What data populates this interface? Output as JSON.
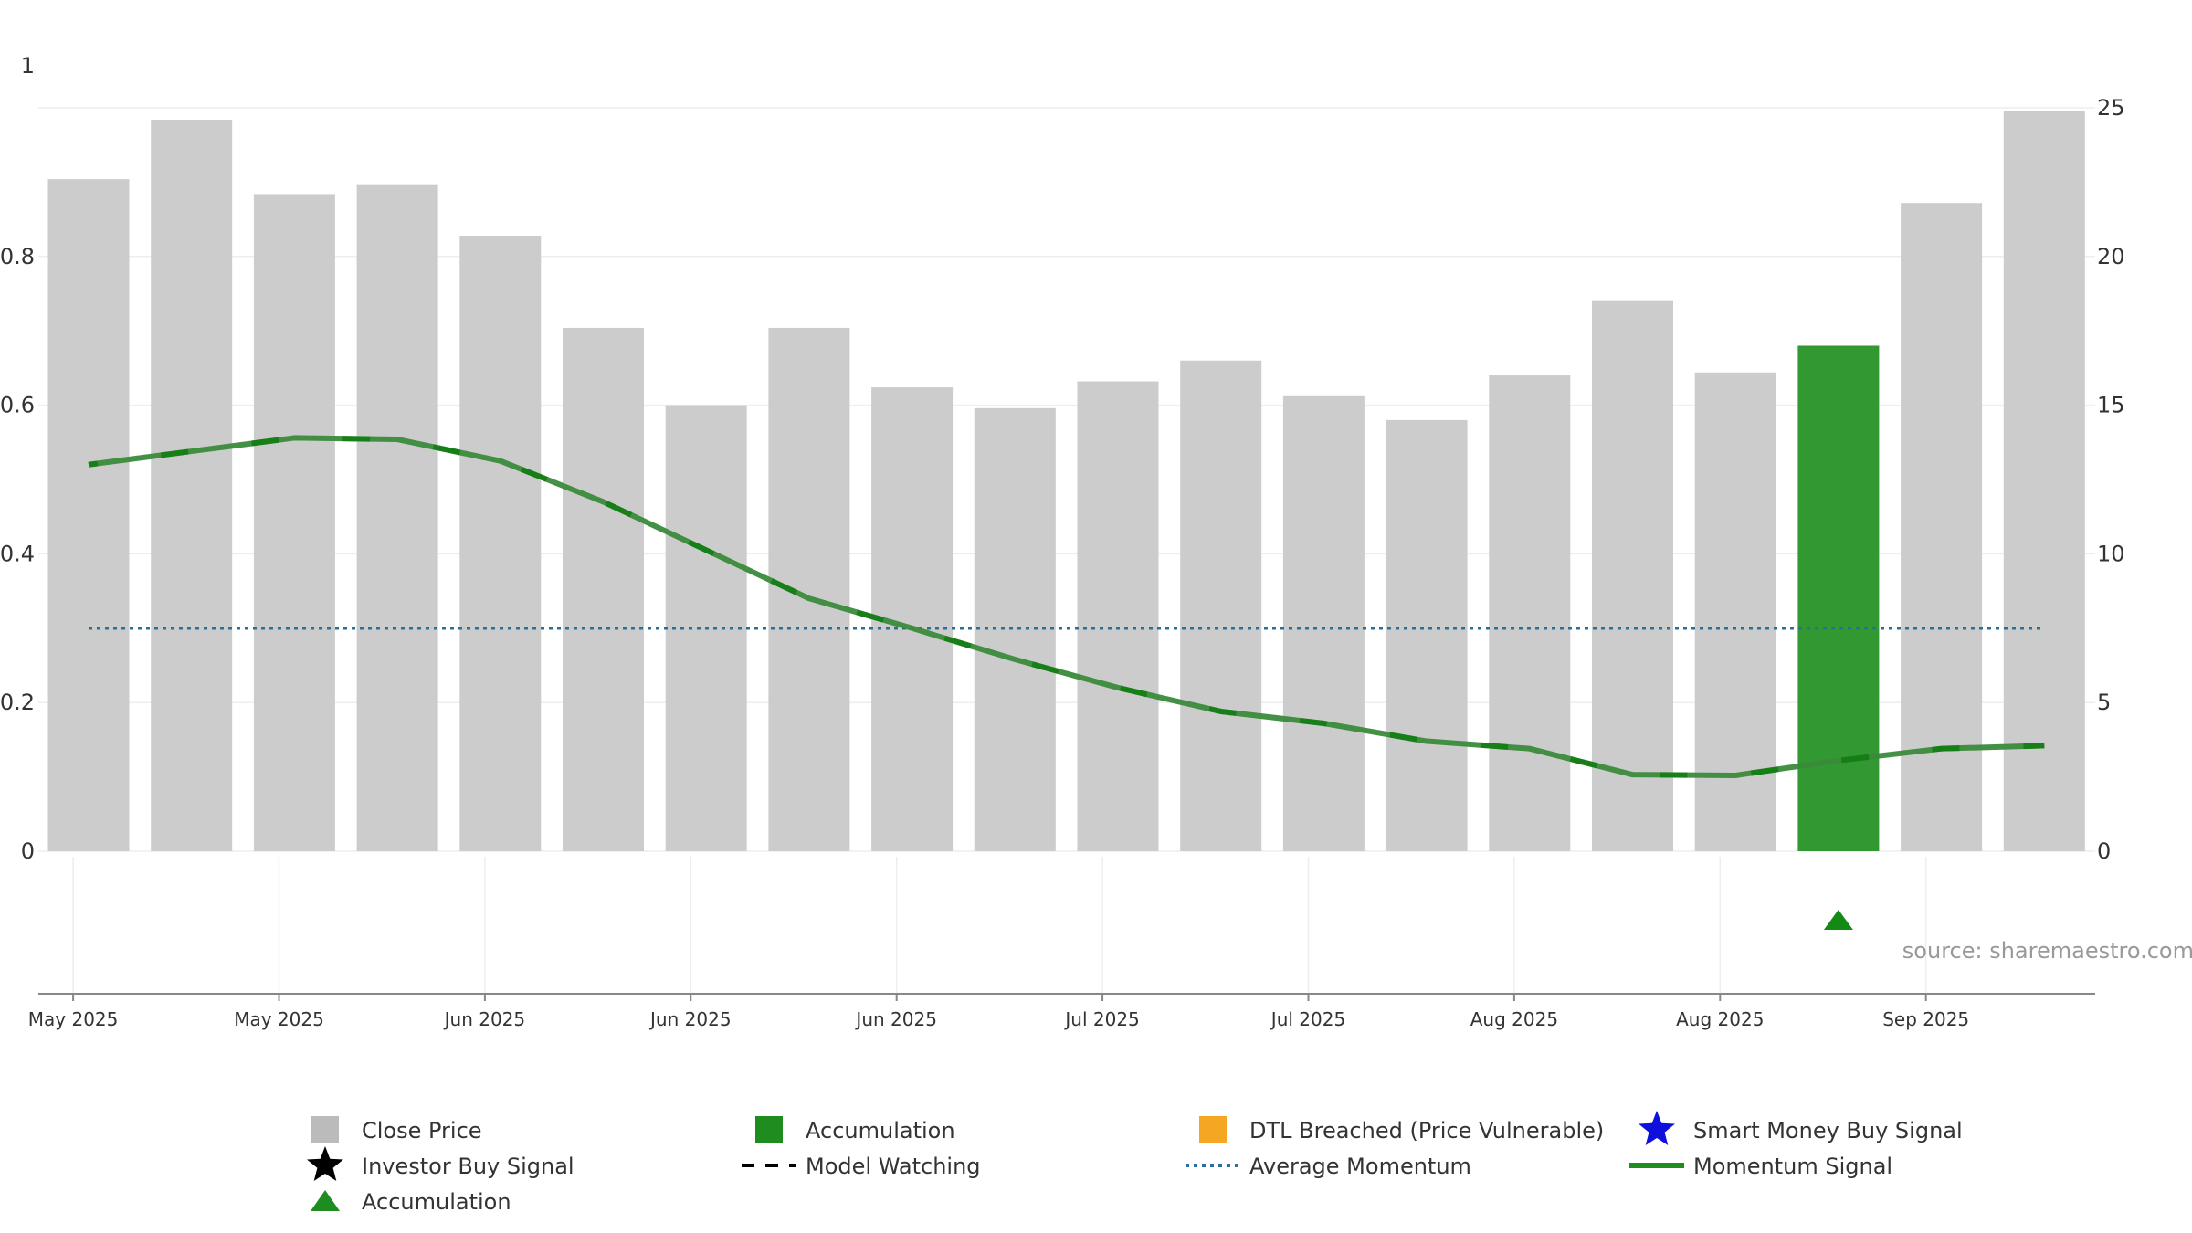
{
  "chart_data": {
    "type": "bar",
    "left_axis": {
      "ylim": [
        0,
        1
      ],
      "ticks": [
        0,
        0.2,
        0.4,
        0.6,
        0.8,
        1
      ],
      "tick_labels": [
        "0",
        "0.2",
        "0.4",
        "0.6",
        "0.8",
        "1"
      ]
    },
    "right_axis": {
      "ylim": [
        0,
        25
      ],
      "ticks": [
        0,
        5,
        10,
        15,
        20,
        25
      ],
      "tick_labels": [
        "0",
        "5",
        "10",
        "15",
        "20",
        "25"
      ]
    },
    "close_price": [
      22.6,
      24.6,
      22.1,
      22.4,
      20.7,
      17.6,
      15.0,
      17.6,
      15.6,
      14.9,
      15.8,
      16.5,
      15.3,
      14.5,
      16.0,
      18.5,
      16.1,
      17.0,
      21.8,
      24.9
    ],
    "accumulation_bars": [
      false,
      false,
      false,
      false,
      false,
      false,
      false,
      false,
      false,
      false,
      false,
      false,
      false,
      false,
      false,
      false,
      false,
      true,
      false,
      false
    ],
    "momentum_signal": [
      0.52,
      0.538,
      0.556,
      0.554,
      0.525,
      0.47,
      0.405,
      0.34,
      0.3,
      0.258,
      0.22,
      0.188,
      0.172,
      0.148,
      0.138,
      0.103,
      0.102,
      0.122,
      0.138,
      0.142
    ],
    "average_momentum": 0.3,
    "accumulation_markers": [
      17
    ],
    "x_tick_labels": [
      "May 2025",
      "May 2025",
      "Jun 2025",
      "Jun 2025",
      "Jun 2025",
      "Jul 2025",
      "Jul 2025",
      "Aug 2025",
      "Aug 2025",
      "Sep 2025"
    ],
    "x_tick_positions_in_bars": [
      -0.15,
      1.85,
      3.85,
      5.85,
      7.85,
      9.85,
      11.85,
      13.85,
      15.85,
      17.85
    ],
    "source_label": "source: sharemaestro.com",
    "legend": [
      {
        "key": "close",
        "label": "Close Price",
        "symbol": "square",
        "color": "#bbbbbb"
      },
      {
        "key": "accum_bar",
        "label": "Accumulation",
        "symbol": "square",
        "color": "#1e8c1e"
      },
      {
        "key": "dtl",
        "label": "DTL Breached (Price Vulnerable)",
        "symbol": "square",
        "color": "#f5a623"
      },
      {
        "key": "smart",
        "label": "Smart Money Buy Signal",
        "symbol": "star",
        "color": "#1010dd"
      },
      {
        "key": "investor",
        "label": "Investor Buy Signal",
        "symbol": "star",
        "color": "#000000"
      },
      {
        "key": "watch",
        "label": "Model Watching",
        "symbol": "dash",
        "color": "#000000"
      },
      {
        "key": "avg",
        "label": "Average Momentum",
        "symbol": "dot",
        "color": "#2a6f97"
      },
      {
        "key": "mom",
        "label": "Momentum Signal",
        "symbol": "line",
        "color": "#1e8c1e"
      },
      {
        "key": "accum_tri",
        "label": "Accumulation",
        "symbol": "triangle",
        "color": "#1e8c1e"
      }
    ],
    "colors": {
      "bar": "#cccccc",
      "accum_bar": "#329932",
      "momentum": "#3a8a3a",
      "momentum_dark": "#0a7a0a",
      "average": "#2a6f97",
      "grid": "#eeeeee",
      "axis": "#888888"
    }
  }
}
